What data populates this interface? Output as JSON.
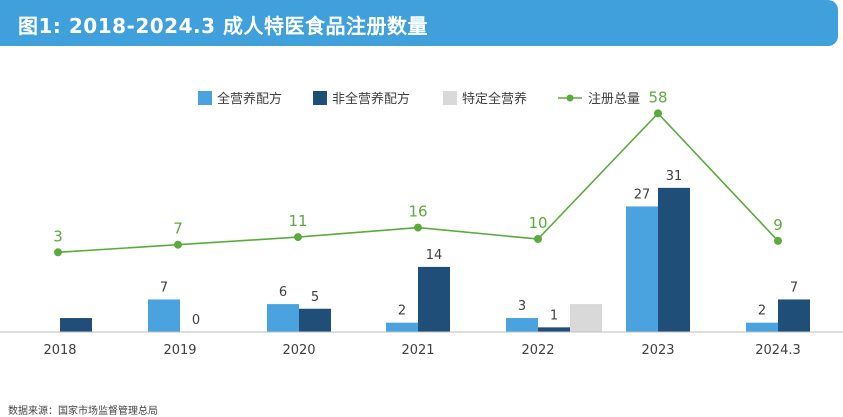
{
  "header": {
    "title": "图1: 2018-2024.3 成人特医食品注册数量"
  },
  "footer": {
    "source": "数据来源：国家市场监督管理总局"
  },
  "colors": {
    "series1": "#4aa3df",
    "series2": "#1f4e79",
    "series3": "#d9d9d9",
    "line": "#5aab3c",
    "axis": "#bfbfbf",
    "label": "#404040"
  },
  "chart_data": {
    "type": "bar",
    "title": "图1: 2018-2024.3 成人特医食品注册数量",
    "categories": [
      "2018",
      "2019",
      "2020",
      "2021",
      "2022",
      "2023",
      "2024.3"
    ],
    "series": [
      {
        "name": "全营养配方",
        "values": [
          null,
          7,
          6,
          2,
          3,
          27,
          2
        ]
      },
      {
        "name": "非全营养配方",
        "values": [
          null,
          0,
          5,
          14,
          1,
          31,
          7
        ]
      },
      {
        "name": "特定全营养",
        "values": [
          null,
          null,
          null,
          null,
          null,
          null,
          null
        ]
      }
    ],
    "line_series": {
      "name": "注册总量",
      "values": [
        3,
        7,
        11,
        16,
        10,
        58,
        9
      ]
    },
    "legend_position": "top-right",
    "xlabel": "",
    "ylabel": ""
  }
}
